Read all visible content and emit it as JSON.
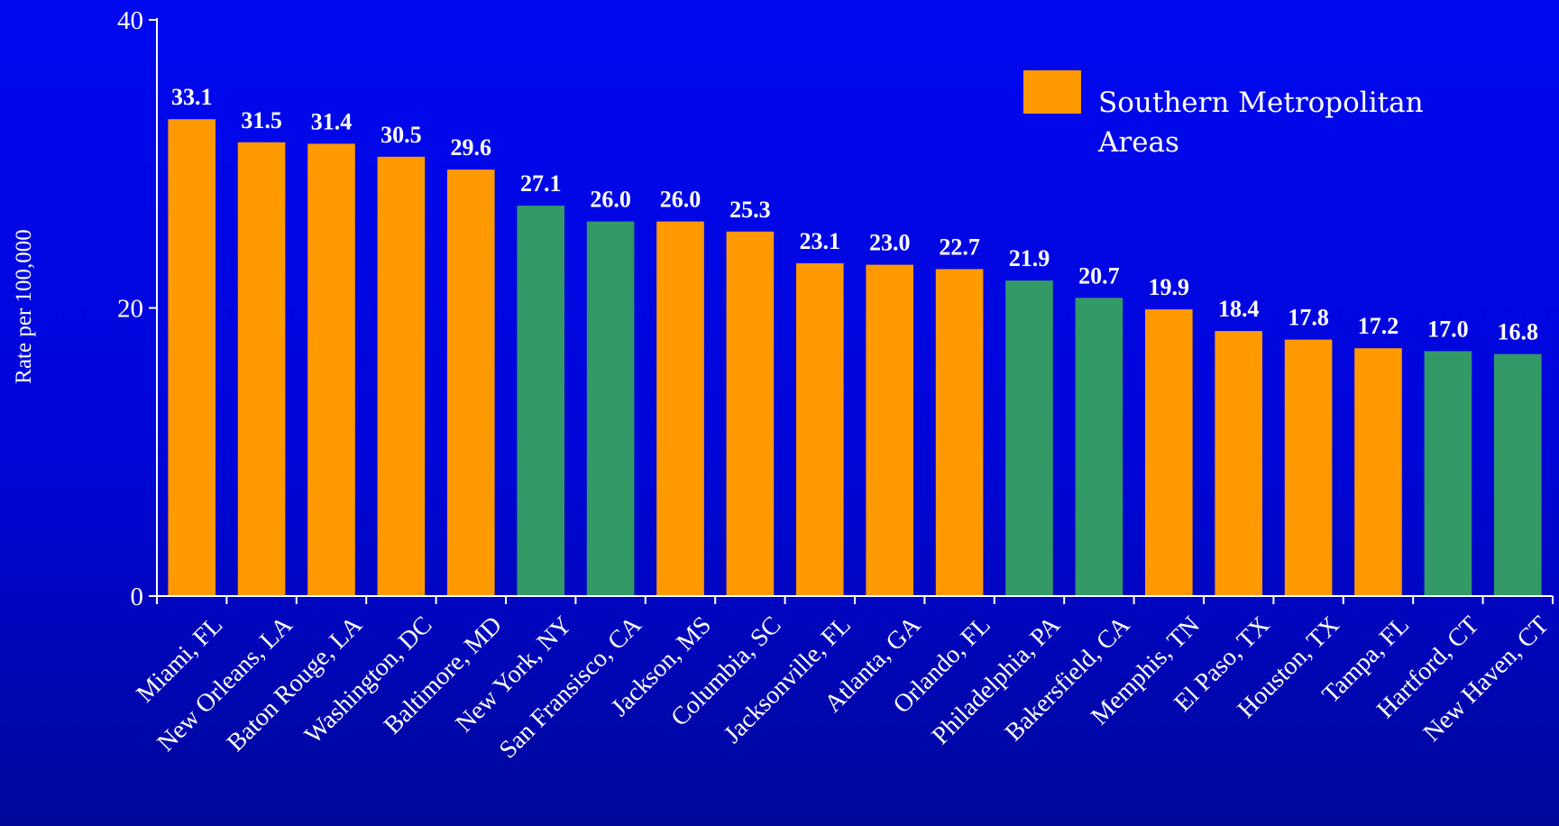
{
  "chart_data": {
    "type": "bar",
    "categories": [
      "Miami, FL",
      "New Orleans, LA",
      "Baton Rouge, LA",
      "Washington, DC",
      "Baltimore, MD",
      "New York, NY",
      "San Fransisco, CA",
      "Jackson, MS",
      "Columbia, SC",
      "Jacksonville, FL",
      "Atlanta, GA",
      "Orlando, FL",
      "Philadelphia, PA",
      "Bakersfield, CA",
      "Memphis, TN",
      "El Paso, TX",
      "Houston, TX",
      "Tampa, FL",
      "Hartford, CT",
      "New Haven, CT"
    ],
    "values": [
      33.1,
      31.5,
      31.4,
      30.5,
      29.6,
      27.1,
      26.0,
      26.0,
      25.3,
      23.1,
      23.0,
      22.7,
      21.9,
      20.7,
      19.9,
      18.4,
      17.8,
      17.2,
      17.0,
      16.8
    ],
    "value_labels": [
      "33.1",
      "31.5",
      "31.4",
      "30.5",
      "29.6",
      "27.1",
      "26.0",
      "26.0",
      "25.3",
      "23.1",
      "23.0",
      "22.7",
      "21.9",
      "20.7",
      "19.9",
      "18.4",
      "17.8",
      "17.2",
      "17.0",
      "16.8"
    ],
    "southern": [
      true,
      true,
      true,
      true,
      true,
      false,
      false,
      true,
      true,
      true,
      true,
      true,
      false,
      false,
      true,
      true,
      true,
      true,
      false,
      false
    ],
    "ylabel": "Rate per 100,000",
    "xlabel": "",
    "ylim": [
      0,
      40
    ],
    "yticks": [
      0,
      20,
      40
    ],
    "ytick_labels": [
      "0",
      "20",
      "40"
    ],
    "grid": false,
    "legend": {
      "position": "top-right",
      "entries": [
        {
          "label_lines": [
            "Southern Metropolitan",
            "Areas"
          ],
          "color": "#ff9900"
        }
      ]
    },
    "colors": {
      "southern": "#ff9900",
      "other": "#339966",
      "background": "#0008f0",
      "text": "#ffffff"
    }
  }
}
